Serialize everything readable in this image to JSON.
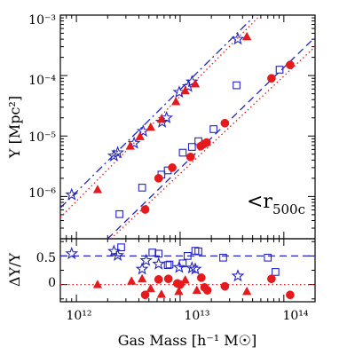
{
  "chart_data": [
    {
      "type": "scatter",
      "panel": "top",
      "ylabel": "Y [Mpc²]",
      "xscale": "log",
      "yscale": "log",
      "xlim": [
        700000000000,
        200000000000000
      ],
      "ylim": [
        2e-07,
        0.001
      ],
      "x_ticks": [
        "10¹²",
        "10¹³",
        "10¹⁴"
      ],
      "y_ticks": [
        "10⁻⁶",
        "10⁻⁵",
        "10⁻⁴",
        "10⁻³"
      ],
      "annotation": {
        "prefix": "<r",
        "subscript": "500c"
      },
      "series": [
        {
          "marker": "open-star",
          "color": "#2222cc",
          "x": [
            900000000000.0,
            2300000000000.0,
            2500000000000.0,
            3600000000000.0,
            4400000000000.0,
            6700000000000.0,
            7400000000000.0,
            9800000000000.0,
            12000000000000.0,
            13000000000000.0,
            36000000000000.0
          ],
          "y": [
            1.07e-06,
            4.7e-06,
            5.3e-06,
            7.6e-06,
            1.2e-05,
            1.7e-05,
            2e-05,
            5.3e-05,
            6.6e-05,
            7.9e-05,
            0.0004
          ]
        },
        {
          "marker": "filled-triangle",
          "color": "#e41a1c",
          "x": [
            1600000000000.0,
            3300000000000.0,
            4100000000000.0,
            5200000000000.0,
            6600000000000.0,
            9100000000000.0,
            11200000000000.0,
            14000000000000.0,
            44000000000000.0
          ],
          "y": [
            1.3e-06,
            6.8e-06,
            9.8e-06,
            1.4e-05,
            1.9e-05,
            3.7e-05,
            5.6e-05,
            7.3e-05,
            0.00044
          ]
        },
        {
          "marker": "open-square",
          "color": "#2222cc",
          "x": [
            2600000000000.0,
            4300000000000.0,
            6600000000000.0,
            7600000000000.0,
            10600000000000.0,
            13000000000000.0,
            15000000000000.0,
            21000000000000.0,
            35000000000000.0,
            91000000000000.0
          ],
          "y": [
            5.1e-07,
            1.4e-06,
            2.3e-06,
            2.7e-06,
            5.3e-06,
            6.6e-06,
            8.2e-06,
            1.3e-05,
            6.9e-05,
            0.000125
          ]
        },
        {
          "marker": "filled-circle",
          "color": "#e41a1c",
          "x": [
            4600000000000.0,
            6200000000000.0,
            8400000000000.0,
            12600000000000.0,
            15800000000000.0,
            17000000000000.0,
            18000000000000.0,
            27000000000000.0,
            76000000000000.0,
            115000000000000.0
          ],
          "y": [
            6.1e-07,
            2e-06,
            3e-06,
            4.5e-06,
            6.8e-06,
            7.4e-06,
            7.8e-06,
            1.63e-05,
            9e-05,
            0.00015
          ]
        }
      ],
      "fit_lines": [
        {
          "style": "dash-dot",
          "color": "#2222cc",
          "x": [
            700000000000.0,
            50000000000000.0
          ],
          "y": [
            6.5e-07,
            0.0009
          ]
        },
        {
          "style": "dotted",
          "color": "#e41a1c",
          "x": [
            700000000000.0,
            56000000000000.0
          ],
          "y": [
            4.5e-07,
            0.0009
          ]
        },
        {
          "style": "dashed",
          "color": "#2222cc",
          "x": [
            2000000000000.0,
            200000000000000.0
          ],
          "y": [
            2e-07,
            0.00043
          ]
        },
        {
          "style": "dotted",
          "color": "#e41a1c",
          "x": [
            2150000000000.0,
            200000000000000.0
          ],
          "y": [
            2e-07,
            0.0003
          ]
        }
      ]
    },
    {
      "type": "scatter",
      "panel": "bottom",
      "xlabel": "Gas Mass [h⁻¹ M☉]",
      "ylabel": "ΔY/Y",
      "xscale": "log",
      "xlim": [
        700000000000,
        200000000000000
      ],
      "ylim": [
        -0.3,
        0.8
      ],
      "y_ticks": [
        "0",
        "0.5"
      ],
      "hlines": [
        {
          "y": 0.5,
          "style": "dashed",
          "color": "#2222cc"
        },
        {
          "y": 0.0,
          "style": "dotted",
          "color": "#e41a1c"
        }
      ],
      "series": [
        {
          "marker": "open-star",
          "color": "#2222cc",
          "x": [
            900000000000.0,
            2300000000000.0,
            2500000000000.0,
            4300000000000.0,
            4700000000000.0,
            6200000000000.0,
            9800000000000.0,
            13000000000000.0,
            14000000000000.0,
            36000000000000.0
          ],
          "y": [
            0.54,
            0.58,
            0.51,
            0.27,
            0.42,
            0.36,
            0.3,
            0.29,
            0.27,
            0.15
          ]
        },
        {
          "marker": "filled-triangle",
          "color": "#e41a1c",
          "x": [
            1600000000000.0,
            3400000000000.0,
            4300000000000.0,
            5200000000000.0,
            6600000000000.0,
            9700000000000.0,
            11200000000000.0,
            14500000000000.0,
            44000000000000.0
          ],
          "y": [
            0.0,
            0.06,
            0.1,
            -0.07,
            -0.17,
            -0.12,
            0.08,
            -0.1,
            -0.12
          ]
        },
        {
          "marker": "open-square",
          "color": "#2222cc",
          "x": [
            2700000000000.0,
            5400000000000.0,
            6200000000000.0,
            7600000000000.0,
            7900000000000.0,
            10600000000000.0,
            11800000000000.0,
            14000000000000.0,
            15000000000000.0,
            26000000000000.0,
            70000000000000.0,
            83000000000000.0
          ],
          "y": [
            0.65,
            0.56,
            0.54,
            0.34,
            0.35,
            0.37,
            0.5,
            0.59,
            0.58,
            0.47,
            0.47,
            0.22
          ]
        },
        {
          "marker": "filled-circle",
          "color": "#e41a1c",
          "x": [
            4600000000000.0,
            6200000000000.0,
            7700000000000.0,
            9400000000000.0,
            10000000000000.0,
            16000000000000.0,
            17200000000000.0,
            18300000000000.0,
            27000000000000.0,
            76000000000000.0,
            115000000000000.0
          ],
          "y": [
            -0.18,
            0.09,
            0.1,
            0.02,
            0.0,
            0.12,
            -0.05,
            -0.1,
            -0.03,
            0.1,
            -0.18
          ]
        }
      ]
    }
  ]
}
